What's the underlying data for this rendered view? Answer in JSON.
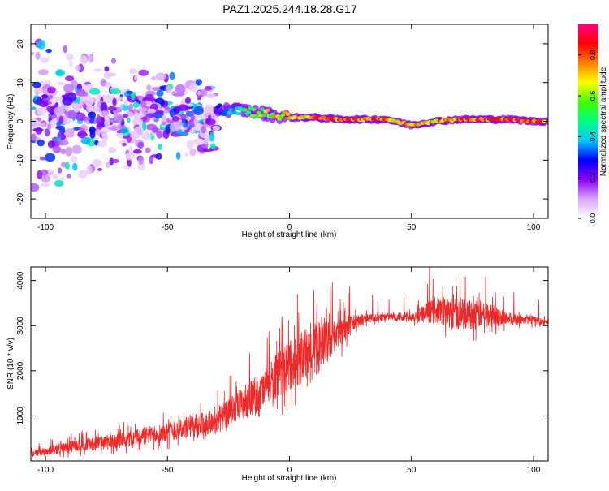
{
  "title": "PAZ1.2025.244.18.28.G17",
  "chart_data": [
    {
      "type": "heatmap",
      "title": "PAZ1.2025.244.18.28.G17",
      "xlabel": "Height of straight line (km)",
      "ylabel": "Frequency (Hz)",
      "xlim": [
        -106,
        106
      ],
      "ylim": [
        -25,
        25
      ],
      "x_ticks": [
        -100,
        -50,
        0,
        50,
        100
      ],
      "y_ticks": [
        -20,
        -10,
        0,
        10,
        20
      ],
      "colorbar": {
        "label": "Normalized spectral amplitude",
        "range": [
          0,
          0.95
        ],
        "ticks": [
          0.0,
          0.2,
          0.4,
          0.6,
          0.8
        ],
        "tick_labels": [
          "0.0",
          "0.2",
          "0.4",
          "0.6",
          "0.8"
        ],
        "colors": [
          "#ffffff",
          "#d9a6ff",
          "#8a00ff",
          "#0000ff",
          "#00c8ff",
          "#00ff80",
          "#40ff00",
          "#ffff00",
          "#ff8000",
          "#ff0000",
          "#ff0080"
        ]
      },
      "ridge": {
        "description_points": [
          {
            "x": -30,
            "freq": 3.0,
            "amp": 0.3
          },
          {
            "x": -20,
            "freq": 3.0,
            "amp": 0.5
          },
          {
            "x": -10,
            "freq": 2.0,
            "amp": 0.7
          },
          {
            "x": 0,
            "freq": 1.0,
            "amp": 0.8
          },
          {
            "x": 10,
            "freq": 1.0,
            "amp": 0.85
          },
          {
            "x": 20,
            "freq": 0.5,
            "amp": 0.9
          },
          {
            "x": 30,
            "freq": 0.5,
            "amp": 0.9
          },
          {
            "x": 40,
            "freq": 0.5,
            "amp": 0.85
          },
          {
            "x": 50,
            "freq": -1.0,
            "amp": 0.8
          },
          {
            "x": 60,
            "freq": 0.0,
            "amp": 0.85
          },
          {
            "x": 70,
            "freq": 0.5,
            "amp": 0.9
          },
          {
            "x": 80,
            "freq": 0.5,
            "amp": 0.9
          },
          {
            "x": 90,
            "freq": 0.5,
            "amp": 0.9
          },
          {
            "x": 100,
            "freq": 0.0,
            "amp": 0.9
          },
          {
            "x": 106,
            "freq": 0.0,
            "amp": 0.9
          }
        ],
        "scatter_region": {
          "x_from": -106,
          "x_to": -30,
          "freq_from": -20,
          "freq_to": 22,
          "amp": 0.35
        }
      }
    },
    {
      "type": "line",
      "xlabel": "Height of straight line (km)",
      "ylabel": "SNR (10 * v/v)",
      "xlim": [
        -106,
        106
      ],
      "ylim": [
        0,
        4300
      ],
      "x_ticks": [
        -100,
        -50,
        0,
        50,
        100
      ],
      "y_ticks": [
        1000,
        2000,
        3000,
        4000
      ],
      "color": "#f02828",
      "series": [
        {
          "name": "SNR",
          "envelope": [
            {
              "x": -106,
              "low": 20,
              "high": 300
            },
            {
              "x": -90,
              "low": 80,
              "high": 550
            },
            {
              "x": -70,
              "low": 150,
              "high": 750
            },
            {
              "x": -50,
              "low": 250,
              "high": 1050
            },
            {
              "x": -30,
              "low": 350,
              "high": 1400
            },
            {
              "x": -20,
              "low": 600,
              "high": 1900
            },
            {
              "x": -10,
              "low": 800,
              "high": 2400
            },
            {
              "x": 0,
              "low": 1100,
              "high": 3200
            },
            {
              "x": 10,
              "low": 1300,
              "high": 3500
            },
            {
              "x": 20,
              "low": 2200,
              "high": 3500
            },
            {
              "x": 30,
              "low": 2950,
              "high": 3350
            },
            {
              "x": 40,
              "low": 3050,
              "high": 3350
            },
            {
              "x": 50,
              "low": 3000,
              "high": 3400
            },
            {
              "x": 60,
              "low": 2800,
              "high": 3900
            },
            {
              "x": 70,
              "low": 2600,
              "high": 3900
            },
            {
              "x": 80,
              "low": 2700,
              "high": 3800
            },
            {
              "x": 90,
              "low": 2900,
              "high": 3400
            },
            {
              "x": 100,
              "low": 2950,
              "high": 3300
            },
            {
              "x": 106,
              "low": 2950,
              "high": 3200
            }
          ]
        }
      ]
    }
  ]
}
